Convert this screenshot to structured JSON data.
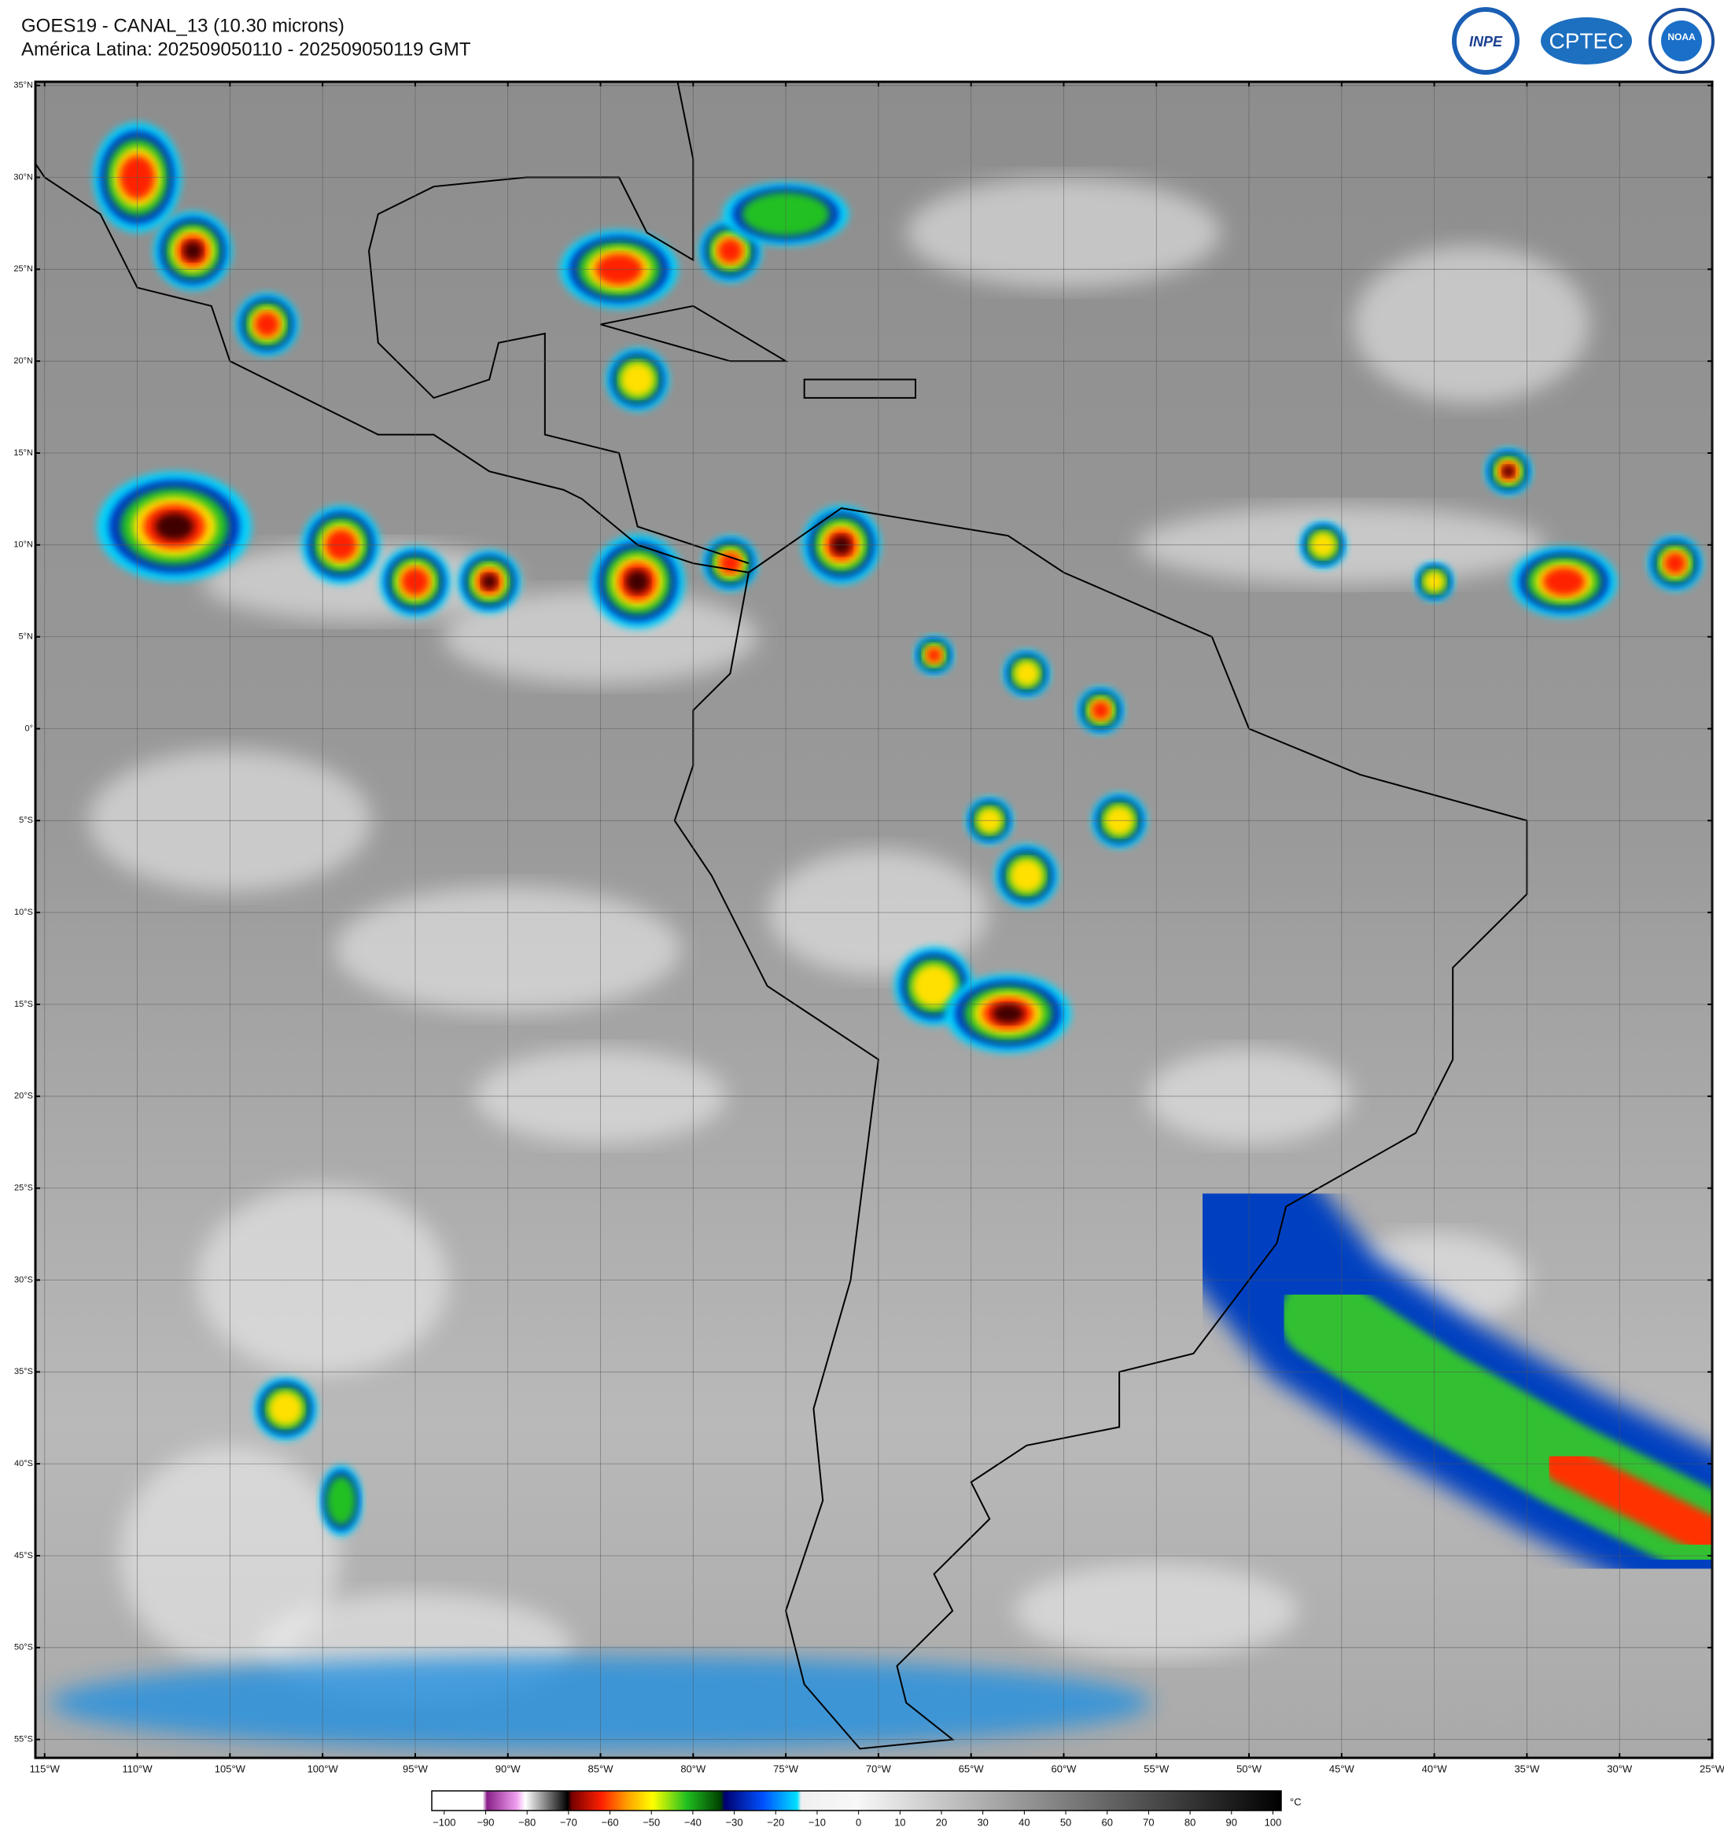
{
  "header": {
    "title": "GOES19 - CANAL_13 (10.30 microns)",
    "subtitle": "América Latina: 202509050110 - 202509050119 GMT"
  },
  "logos": [
    "INPE",
    "CPTEC",
    "NOAA"
  ],
  "map": {
    "lon_range": [
      -115.5,
      -25
    ],
    "lat_range": [
      -56,
      35.2
    ],
    "lon_ticks": [
      {
        "value": -115,
        "label": "115°W"
      },
      {
        "value": -110,
        "label": "110°W"
      },
      {
        "value": -105,
        "label": "105°W"
      },
      {
        "value": -100,
        "label": "100°W"
      },
      {
        "value": -95,
        "label": "95°W"
      },
      {
        "value": -90,
        "label": "90°W"
      },
      {
        "value": -85,
        "label": "85°W"
      },
      {
        "value": -80,
        "label": "80°W"
      },
      {
        "value": -75,
        "label": "75°W"
      },
      {
        "value": -70,
        "label": "70°W"
      },
      {
        "value": -65,
        "label": "65°W"
      },
      {
        "value": -60,
        "label": "60°W"
      },
      {
        "value": -55,
        "label": "55°W"
      },
      {
        "value": -50,
        "label": "50°W"
      },
      {
        "value": -45,
        "label": "45°W"
      },
      {
        "value": -40,
        "label": "40°W"
      },
      {
        "value": -35,
        "label": "35°W"
      },
      {
        "value": -30,
        "label": "30°W"
      },
      {
        "value": -25,
        "label": "25°W"
      }
    ],
    "lat_ticks": [
      {
        "value": 35,
        "label": "35°N"
      },
      {
        "value": 30,
        "label": "30°N"
      },
      {
        "value": 25,
        "label": "25°N"
      },
      {
        "value": 20,
        "label": "20°N"
      },
      {
        "value": 15,
        "label": "15°N"
      },
      {
        "value": 10,
        "label": "10°N"
      },
      {
        "value": 5,
        "label": "5°N"
      },
      {
        "value": 0,
        "label": "0°"
      },
      {
        "value": -5,
        "label": "5°S"
      },
      {
        "value": -10,
        "label": "10°S"
      },
      {
        "value": -15,
        "label": "15°S"
      },
      {
        "value": -20,
        "label": "20°S"
      },
      {
        "value": -25,
        "label": "25°S"
      },
      {
        "value": -30,
        "label": "30°S"
      },
      {
        "value": -35,
        "label": "35°S"
      },
      {
        "value": -40,
        "label": "40°S"
      },
      {
        "value": -45,
        "label": "45°S"
      },
      {
        "value": -50,
        "label": "50°S"
      },
      {
        "value": -55,
        "label": "55°S"
      }
    ]
  },
  "colorbar": {
    "range": [
      -103,
      102
    ],
    "unit": "°C",
    "ticks": [
      {
        "value": -100,
        "label": "−100"
      },
      {
        "value": -90,
        "label": "−90"
      },
      {
        "value": -80,
        "label": "−80"
      },
      {
        "value": -70,
        "label": "−70"
      },
      {
        "value": -60,
        "label": "−60"
      },
      {
        "value": -50,
        "label": "−50"
      },
      {
        "value": -40,
        "label": "−40"
      },
      {
        "value": -30,
        "label": "−30"
      },
      {
        "value": -20,
        "label": "−20"
      },
      {
        "value": -10,
        "label": "−10"
      },
      0,
      10,
      20,
      30,
      40,
      50,
      60,
      70,
      80,
      90,
      100
    ]
  }
}
